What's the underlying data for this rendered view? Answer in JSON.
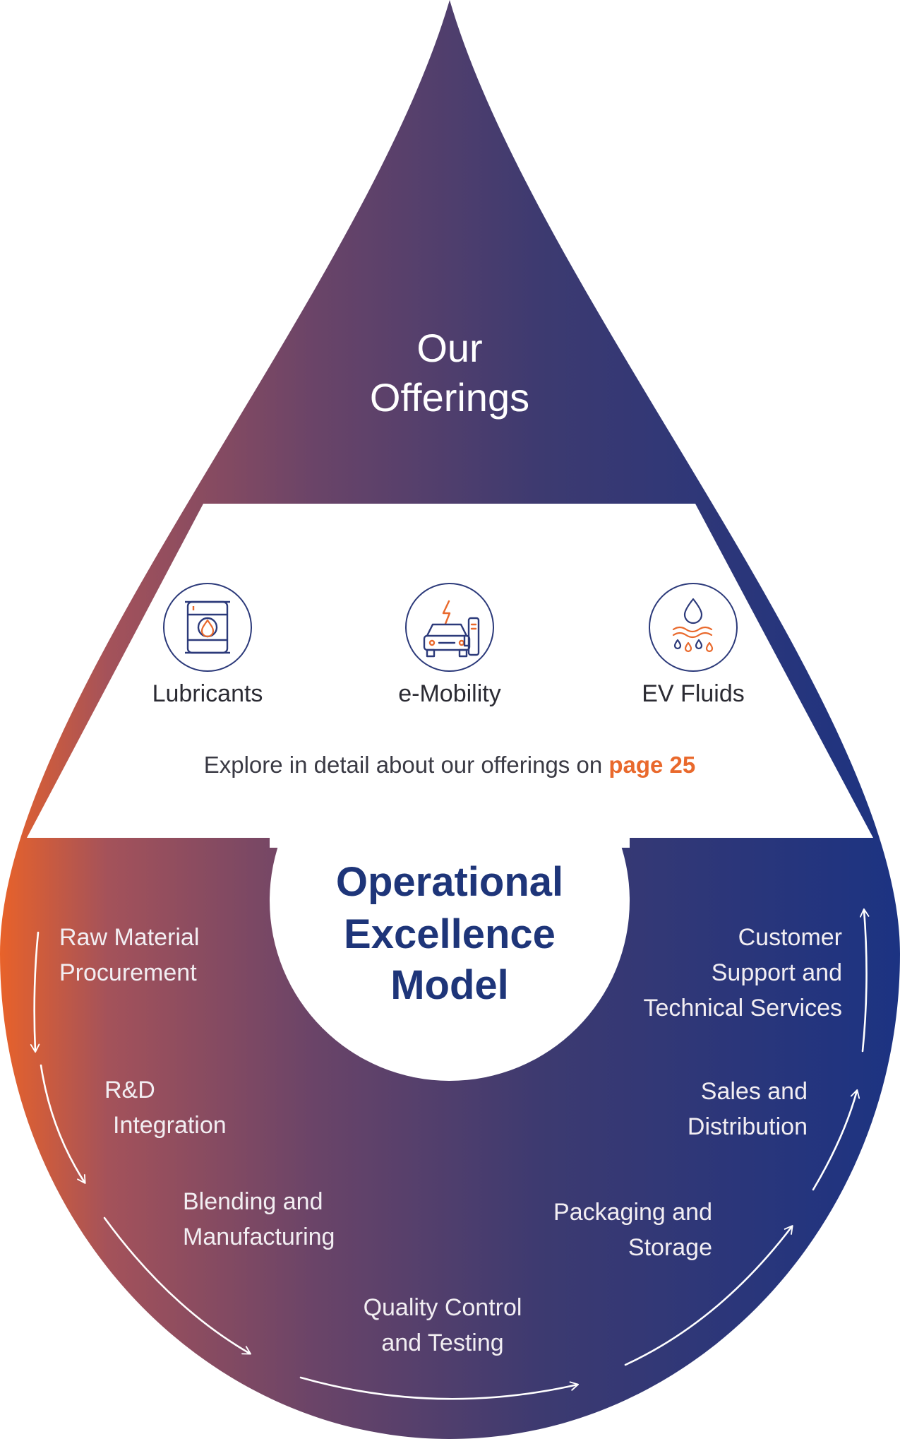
{
  "colors": {
    "gradient_start": "#e8622a",
    "gradient_mid": "#6a4468",
    "gradient_mid2": "#3b3a72",
    "gradient_end": "#1c3382",
    "offerings_title": "#ffffff",
    "model_title": "#1e3579",
    "icon_ring": "#2c3a7a",
    "icon_orange": "#e9692c",
    "link": "#e9692c",
    "step_text": "#f2eef2"
  },
  "header": {
    "title_line1": "Our",
    "title_line2": "Offerings"
  },
  "offerings": [
    {
      "label": "Lubricants",
      "icon": "oil-barrel-icon"
    },
    {
      "label": "e-Mobility",
      "icon": "ev-charging-car-icon"
    },
    {
      "label": "EV Fluids",
      "icon": "fluid-drops-icon"
    }
  ],
  "explore": {
    "text": "Explore in detail about our offerings on ",
    "link": "page 25"
  },
  "model": {
    "line1": "Operational",
    "line2": "Excellence",
    "line3": "Model"
  },
  "steps": [
    {
      "line1": "Raw Material",
      "line2": "Procurement"
    },
    {
      "line1": "R&D",
      "line2": "Integration"
    },
    {
      "line1": "Blending and",
      "line2": "Manufacturing"
    },
    {
      "line1": "Quality Control",
      "line2": "and Testing"
    },
    {
      "line1": "Packaging and",
      "line2": "Storage"
    },
    {
      "line1": "Sales and",
      "line2": "Distribution"
    },
    {
      "line1": "Customer",
      "line2": "Support and",
      "line3": "Technical Services"
    }
  ]
}
